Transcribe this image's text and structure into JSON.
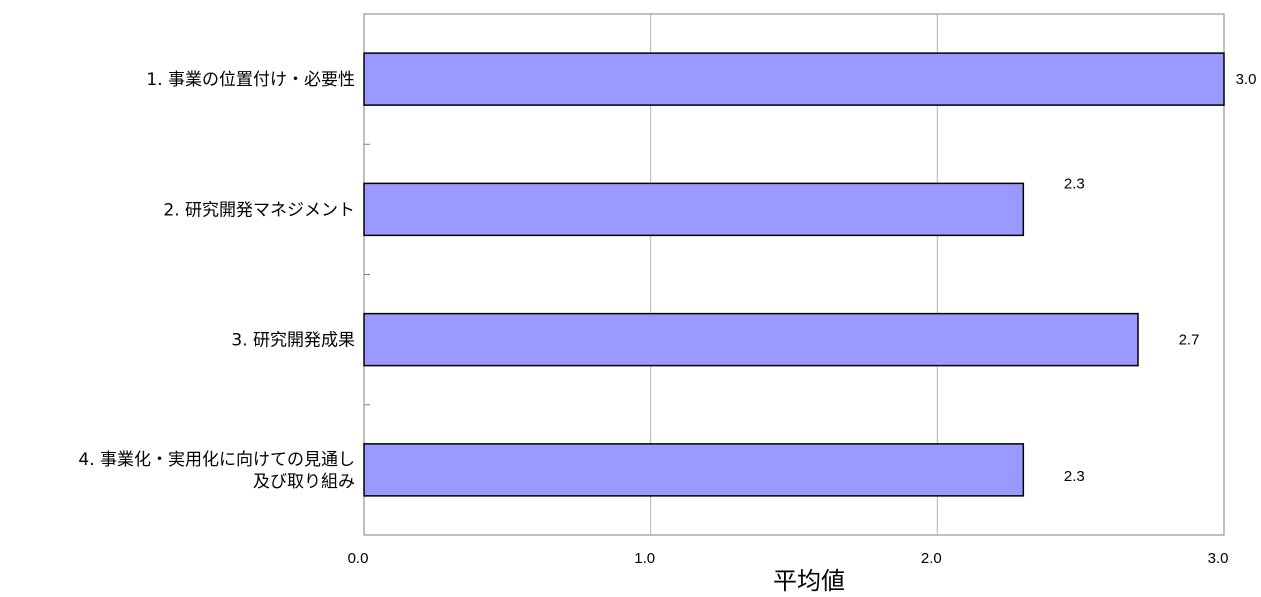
{
  "chart_data": {
    "type": "bar",
    "orientation": "horizontal",
    "categories": [
      [
        "1. 事業の位置付け・必要性"
      ],
      [
        "2. 研究開発マネジメント"
      ],
      [
        "3. 研究開発成果"
      ],
      [
        "4. 事業化・実用化に向けての見通し",
        "及び取り組み"
      ]
    ],
    "values": [
      3.0,
      2.3,
      2.7,
      2.3
    ],
    "value_labels": [
      "3.0",
      "2.3",
      "2.7",
      "2.3"
    ],
    "xlim": [
      0.0,
      3.0
    ],
    "x_ticks": [
      0.0,
      1.0,
      2.0,
      3.0
    ],
    "x_tick_labels": [
      "0.0",
      "1.0",
      "2.0",
      "3.0"
    ],
    "xlabel": "平均値",
    "grid": true,
    "colors": {
      "bar_fill": "#9999ff",
      "bar_stroke": "#000000",
      "grid": "#b3b3b3",
      "frame": "#808080"
    }
  }
}
